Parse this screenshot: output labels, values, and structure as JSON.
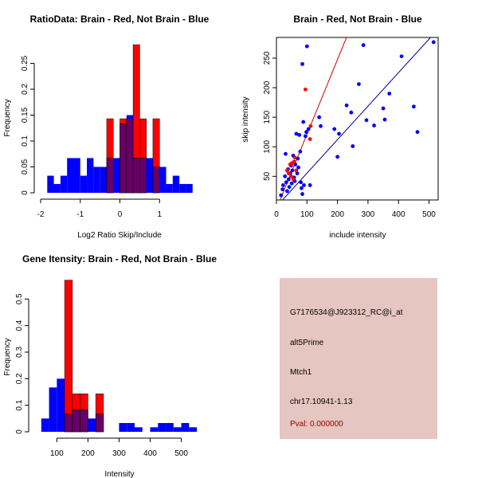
{
  "info_panel": {
    "background": "#e6c6c0",
    "probe": "G7176534@J923312_RC@i_at",
    "event_type": "alt5Prime",
    "gene": "Mtch1",
    "location": "chr17.10941-1.13",
    "pval": "Pval: 0.000000",
    "pval_color": "#8b0000"
  },
  "chart_data": [
    {
      "type": "bar",
      "subtype": "overlaid-histogram",
      "title": "RatioData: Brain - Red, Not Brain - Blue",
      "xlabel": "Log2 Ratio Skip/Include",
      "ylabel": "Frequency",
      "xlim": [
        -2,
        2
      ],
      "ylim": [
        0,
        0.3
      ],
      "xticks": [
        -2,
        -1,
        0,
        1
      ],
      "yticks": [
        0.0,
        0.05,
        0.1,
        0.15,
        0.2,
        0.25
      ],
      "bin_width": 0.167,
      "bin_starts": [
        -1.833,
        -1.667,
        -1.5,
        -1.333,
        -1.167,
        -1.0,
        -0.833,
        -0.667,
        -0.5,
        -0.333,
        -0.167,
        0.0,
        0.167,
        0.333,
        0.5,
        0.667,
        0.833,
        1.0,
        1.167,
        1.333,
        1.5,
        1.667
      ],
      "series": [
        {
          "name": "Not Brain",
          "color": "#0000ff",
          "values": [
            0.033,
            0.017,
            0.033,
            0.067,
            0.067,
            0.033,
            0.067,
            0.05,
            0.05,
            0.067,
            0.067,
            0.133,
            0.15,
            0.067,
            0.067,
            0.067,
            0.05,
            0.05,
            0.017,
            0.033,
            0.017,
            0.017
          ]
        },
        {
          "name": "Brain",
          "color": "#ff0000",
          "values": [
            0,
            0,
            0,
            0,
            0,
            0,
            0,
            0,
            0,
            0.143,
            0,
            0.143,
            0.143,
            0.286,
            0.143,
            0,
            0.143,
            0,
            0,
            0,
            0,
            0
          ]
        }
      ],
      "overlap_color": "#660066"
    },
    {
      "type": "scatter",
      "title": "Brain - Red, Not Brain - Blue",
      "xlabel": "include intensity",
      "ylabel": "skip intensity",
      "xlim": [
        0,
        530
      ],
      "ylim": [
        10,
        285
      ],
      "xticks": [
        0,
        100,
        200,
        300,
        400,
        500
      ],
      "yticks": [
        50,
        100,
        150,
        200,
        250
      ],
      "series": [
        {
          "name": "Not Brain",
          "color": "#0000ff",
          "points": [
            [
              15,
              18
            ],
            [
              20,
              28
            ],
            [
              22,
              35
            ],
            [
              28,
              50
            ],
            [
              30,
              88
            ],
            [
              32,
              40
            ],
            [
              35,
              25
            ],
            [
              38,
              62
            ],
            [
              40,
              45
            ],
            [
              42,
              32
            ],
            [
              45,
              55
            ],
            [
              48,
              68
            ],
            [
              50,
              38
            ],
            [
              52,
              60
            ],
            [
              55,
              85
            ],
            [
              58,
              48
            ],
            [
              60,
              42
            ],
            [
              62,
              70
            ],
            [
              65,
              122
            ],
            [
              68,
              55
            ],
            [
              70,
              80
            ],
            [
              72,
              65
            ],
            [
              75,
              120
            ],
            [
              78,
              92
            ],
            [
              80,
              40
            ],
            [
              82,
              30
            ],
            [
              85,
              20
            ],
            [
              85,
              240
            ],
            [
              88,
              142
            ],
            [
              90,
              35
            ],
            [
              95,
              118
            ],
            [
              98,
              125
            ],
            [
              100,
              270
            ],
            [
              105,
              130
            ],
            [
              110,
              35
            ],
            [
              140,
              150
            ],
            [
              145,
              135
            ],
            [
              190,
              130
            ],
            [
              200,
              83
            ],
            [
              205,
              122
            ],
            [
              230,
              170
            ],
            [
              245,
              158
            ],
            [
              250,
              101
            ],
            [
              270,
              206
            ],
            [
              285,
              272
            ],
            [
              295,
              145
            ],
            [
              320,
              136
            ],
            [
              350,
              165
            ],
            [
              355,
              146
            ],
            [
              370,
              190
            ],
            [
              410,
              253
            ],
            [
              450,
              168
            ],
            [
              462,
              125
            ],
            [
              515,
              277
            ]
          ]
        },
        {
          "name": "Brain",
          "color": "#ff0000",
          "points": [
            [
              35,
              60
            ],
            [
              40,
              55
            ],
            [
              45,
              70
            ],
            [
              48,
              50
            ],
            [
              50,
              72
            ],
            [
              55,
              45
            ],
            [
              58,
              75
            ],
            [
              60,
              82
            ],
            [
              65,
              60
            ],
            [
              95,
              197
            ],
            [
              110,
              113
            ],
            [
              112,
              135
            ]
          ]
        }
      ],
      "fit_lines": [
        {
          "name": "Brain fit",
          "color": "#cc0000",
          "x": [
            12,
            232
          ],
          "y": [
            10,
            288
          ]
        },
        {
          "name": "Not Brain fit",
          "color": "#00008b",
          "x": [
            20,
            505
          ],
          "y": [
            10,
            285
          ]
        }
      ]
    },
    {
      "type": "bar",
      "subtype": "overlaid-histogram",
      "title": "Gene Itensity: Brain - Red, Not Brain - Blue",
      "xlabel": "Intensity",
      "ylabel": "Frequency",
      "xlim": [
        30,
        560
      ],
      "ylim": [
        0,
        0.6
      ],
      "xticks": [
        100,
        200,
        300,
        400,
        500
      ],
      "yticks": [
        0.0,
        0.1,
        0.2,
        0.3,
        0.4,
        0.5
      ],
      "bin_width": 25,
      "bin_starts": [
        50,
        75,
        100,
        125,
        150,
        175,
        200,
        225,
        250,
        275,
        300,
        325,
        350,
        375,
        400,
        425,
        450,
        475,
        500,
        525
      ],
      "series": [
        {
          "name": "Not Brain",
          "color": "#0000ff",
          "values": [
            0.05,
            0.167,
            0.2,
            0.067,
            0.083,
            0.083,
            0.05,
            0.067,
            0,
            0,
            0.033,
            0.033,
            0.017,
            0,
            0.017,
            0.033,
            0.033,
            0.017,
            0.033,
            0.017
          ]
        },
        {
          "name": "Brain",
          "color": "#ff0000",
          "values": [
            0,
            0,
            0,
            0.571,
            0.143,
            0.143,
            0,
            0.143,
            0,
            0,
            0,
            0,
            0,
            0,
            0,
            0,
            0,
            0,
            0,
            0
          ]
        }
      ],
      "overlap_color": "#660066"
    }
  ]
}
